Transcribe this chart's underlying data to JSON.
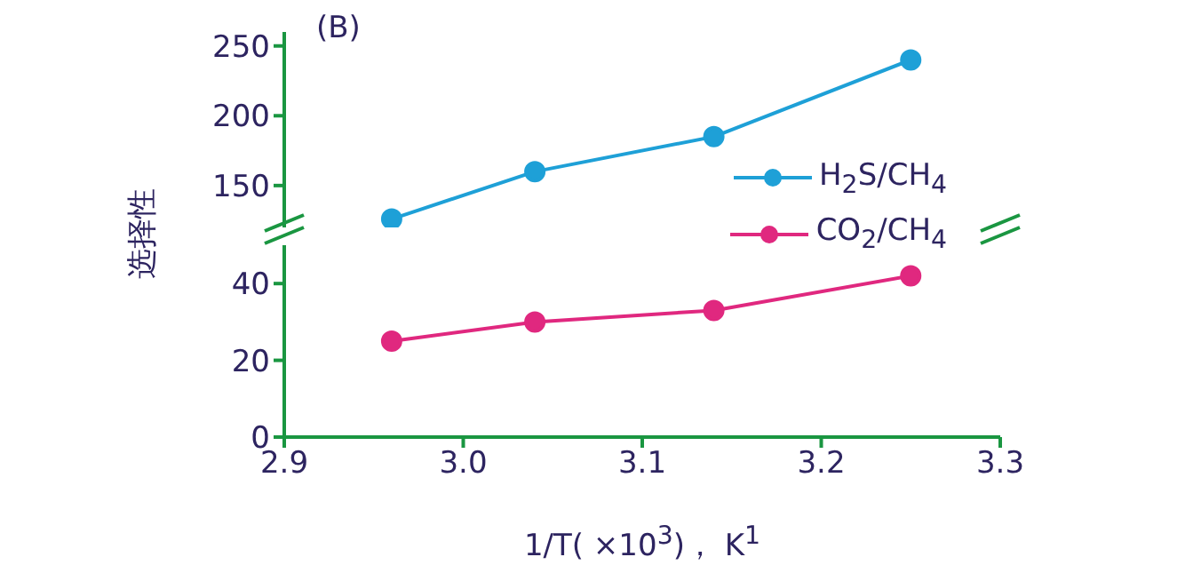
{
  "chart_data": [
    {
      "type": "line",
      "annotations": [
        "(B)"
      ],
      "ylabel": "选择性",
      "xlim": [
        2.9,
        3.3
      ],
      "ylim": [
        120,
        260
      ],
      "yticks": [
        150,
        200,
        250
      ],
      "tick_labels": "y",
      "marker": "circle",
      "line_style": "solid",
      "legend": "bottom right",
      "x": [
        2.96,
        3.04,
        3.14,
        3.25
      ],
      "series": [
        {
          "name": "H$_{2}$S/CH$_{4}$",
          "color": "#1ea0d7",
          "values": [
            126,
            160,
            185,
            240
          ]
        }
      ]
    },
    {
      "type": "line",
      "xlabel": "1/T(  ×10$^{3}$)，  K$^{1}$",
      "xlim": [
        2.9,
        3.3
      ],
      "xticks": [
        2.9,
        {
          "value": 3,
          "label": "3.0"
        },
        3.1,
        3.2,
        3.3
      ],
      "ylim": [
        0,
        50
      ],
      "yticks": [
        0,
        20,
        40
      ],
      "marker": "circle",
      "line_style": "solid",
      "legend": "top right",
      "x": [
        2.96,
        3.04,
        3.14,
        3.25
      ],
      "series": [
        {
          "name": "CO$_{2}$/CH$_{4}$",
          "color": "#e0287f",
          "values": [
            25,
            30,
            33,
            42
          ]
        }
      ]
    }
  ]
}
